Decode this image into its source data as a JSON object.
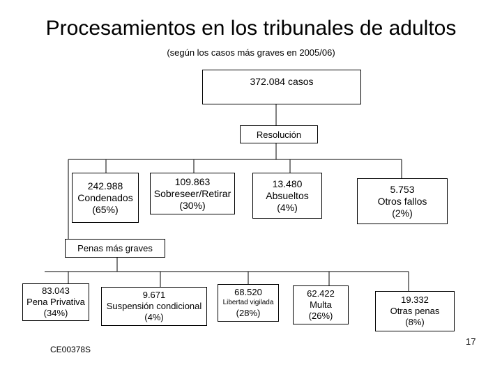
{
  "title": "Procesamientos en los tribunales de adultos",
  "subtitle": "(según los casos más graves en 2005/06)",
  "root": {
    "label": "372.084 casos"
  },
  "resolution": {
    "label": "Resolución"
  },
  "outcomes": [
    {
      "value": "242.988",
      "label": "Condenados",
      "pct": "(65%)"
    },
    {
      "value": "109.863",
      "label": "Sobreseer/Retirar",
      "pct": "(30%)"
    },
    {
      "value": "13.480",
      "label": "Absueltos",
      "pct": "(4%)"
    },
    {
      "value": "5.753",
      "label": "Otros fallos",
      "pct": "(2%)"
    }
  ],
  "penalties_header": {
    "label": "Penas más graves"
  },
  "penalties": [
    {
      "value": "83.043",
      "label": "Pena Privativa",
      "pct": "(34%)"
    },
    {
      "value": "9.671",
      "label": "Suspensión condicional",
      "pct": "(4%)"
    },
    {
      "value": "68.520",
      "label": "Libertad vigilada",
      "pct": "(28%)"
    },
    {
      "value": "62.422",
      "label": "Multa",
      "pct": "(26%)"
    },
    {
      "value": "19.332",
      "label": "Otras penas",
      "pct": "(8%)"
    }
  ],
  "footer": {
    "code": "CE00378S",
    "page_number": "17"
  }
}
